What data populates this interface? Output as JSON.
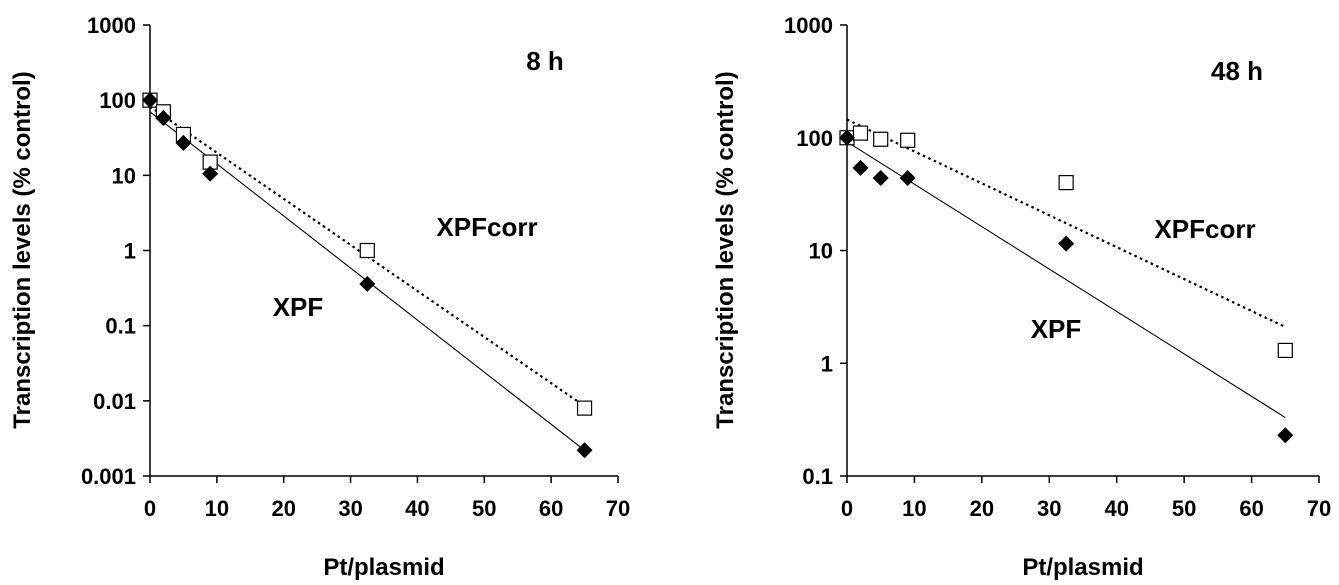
{
  "chart_data": [
    {
      "type": "scatter",
      "yscale": "log",
      "ylim": [
        0.001,
        1000
      ],
      "xlim": [
        0,
        70
      ],
      "xticks": [
        0,
        10,
        20,
        30,
        40,
        50,
        60,
        70
      ],
      "xtick_labels": [
        "0",
        "10",
        "20",
        "30",
        "40",
        "50",
        "60",
        "70"
      ],
      "yticks": [
        0.001,
        0.01,
        0.1,
        1,
        10,
        100,
        1000
      ],
      "ytick_labels": [
        "0.001",
        "0.01",
        "0.1",
        "1",
        "10",
        "100",
        "1000"
      ],
      "xlabel": "Pt/plasmid",
      "ylabel": "Transcription levels (% control)",
      "grid": false,
      "annotations": {
        "time": "8 h",
        "xpfcorr": "XPFcorr",
        "xpf": "XPF"
      },
      "series": [
        {
          "name": "XPFcorr",
          "marker": "open-square",
          "color": "#000000",
          "x": [
            0,
            2,
            5,
            9,
            32.5,
            65
          ],
          "y": [
            100,
            70,
            35,
            15,
            1.0,
            0.008
          ],
          "trendline": {
            "style": "dotted",
            "x": [
              0,
              65
            ],
            "y": [
              82,
              0.0085
            ]
          }
        },
        {
          "name": "XPF",
          "marker": "filled-diamond",
          "color": "#000000",
          "x": [
            0,
            2,
            5,
            9,
            32.5,
            65
          ],
          "y": [
            100,
            58,
            27,
            10.5,
            0.36,
            0.0022
          ],
          "trendline": {
            "style": "solid",
            "x": [
              0,
              65
            ],
            "y": [
              70,
              0.0022
            ]
          }
        }
      ]
    },
    {
      "type": "scatter",
      "yscale": "log",
      "ylim": [
        0.1,
        1000
      ],
      "xlim": [
        0,
        70
      ],
      "xticks": [
        0,
        10,
        20,
        30,
        40,
        50,
        60,
        70
      ],
      "xtick_labels": [
        "0",
        "10",
        "20",
        "30",
        "40",
        "50",
        "60",
        "70"
      ],
      "yticks": [
        0.1,
        1,
        10,
        100,
        1000
      ],
      "ytick_labels": [
        "0.1",
        "1",
        "10",
        "100",
        "1000"
      ],
      "xlabel": "Pt/plasmid",
      "ylabel": "Transcription levels (% control)",
      "grid": false,
      "annotations": {
        "time": "48 h",
        "xpfcorr": "XPFcorr",
        "xpf": "XPF"
      },
      "series": [
        {
          "name": "XPFcorr",
          "marker": "open-square",
          "color": "#000000",
          "x": [
            0,
            2,
            5,
            9,
            32.5,
            65
          ],
          "y": [
            100,
            110,
            97,
            95,
            40,
            1.3
          ],
          "trendline": {
            "style": "dotted",
            "x": [
              0,
              65
            ],
            "y": [
              145,
              2.1
            ]
          }
        },
        {
          "name": "XPF",
          "marker": "filled-diamond",
          "color": "#000000",
          "x": [
            0,
            2,
            5,
            9,
            32.5,
            65
          ],
          "y": [
            100,
            54,
            44,
            44,
            11.5,
            0.23
          ],
          "trendline": {
            "style": "solid",
            "x": [
              0,
              65
            ],
            "y": [
              92,
              0.33
            ]
          }
        }
      ]
    }
  ]
}
